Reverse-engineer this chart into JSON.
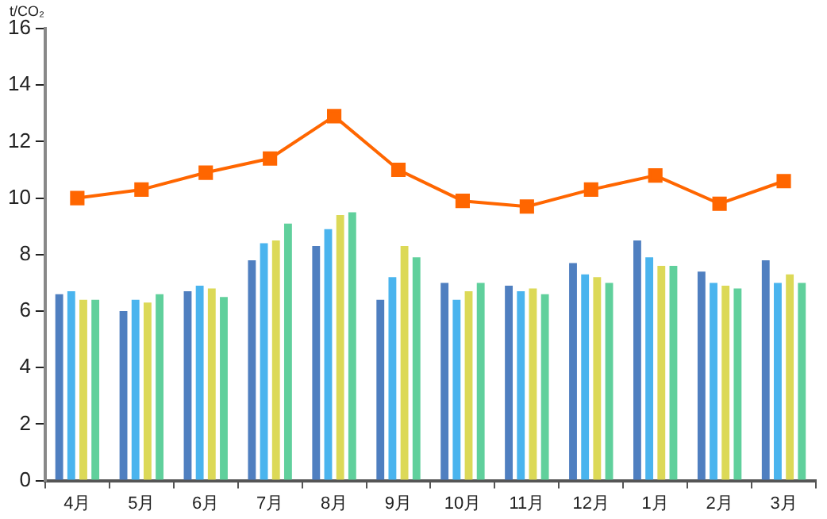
{
  "chart_data": {
    "type": "bar",
    "ylabel": "t/CO₂",
    "categories": [
      "4月",
      "5月",
      "6月",
      "7月",
      "8月",
      "9月",
      "10月",
      "11月",
      "12月",
      "1月",
      "2月",
      "3月"
    ],
    "series": [
      {
        "color": "#4f7fc0",
        "values": [
          6.6,
          6.0,
          6.7,
          7.8,
          8.3,
          6.4,
          7.0,
          6.9,
          7.7,
          8.5,
          7.4,
          7.8
        ]
      },
      {
        "color": "#4ab4ee",
        "values": [
          6.7,
          6.4,
          6.9,
          8.4,
          8.9,
          7.2,
          6.4,
          6.7,
          7.3,
          7.9,
          7.0,
          7.0
        ]
      },
      {
        "color": "#dcd957",
        "values": [
          6.4,
          6.3,
          6.8,
          8.5,
          9.4,
          8.3,
          6.7,
          6.8,
          7.2,
          7.6,
          6.9,
          7.3
        ]
      },
      {
        "color": "#60d09c",
        "values": [
          6.4,
          6.6,
          6.5,
          9.1,
          9.5,
          7.9,
          7.0,
          6.6,
          7.0,
          7.6,
          6.8,
          7.0
        ]
      },
      {
        "type": "line",
        "color": "#ff6600",
        "values": [
          10.0,
          10.3,
          10.9,
          11.4,
          12.9,
          11.0,
          9.9,
          9.7,
          10.3,
          10.8,
          9.8,
          10.6
        ]
      }
    ],
    "ylim": [
      0,
      16
    ],
    "yticks": [
      0,
      2,
      4,
      6,
      8,
      10,
      12,
      14,
      16
    ],
    "grid": false,
    "legend": false,
    "marker": "square",
    "line_style": "solid"
  }
}
